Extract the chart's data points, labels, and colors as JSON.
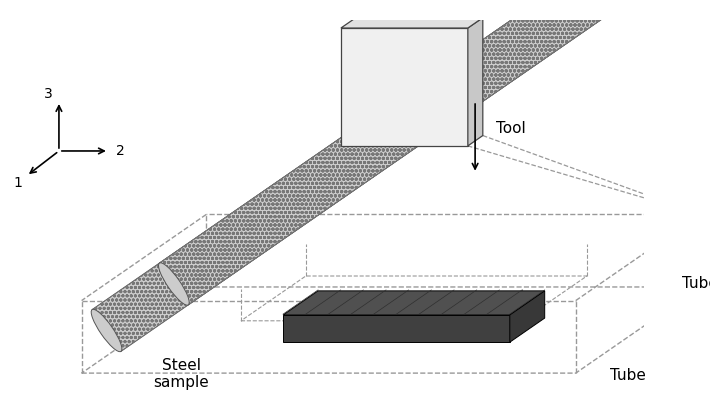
{
  "background_color": "#ffffff",
  "dashed_color": "#999999",
  "tube_body_color": "#cccccc",
  "tube_end_color": "#aaaaaa",
  "tool_front_color": "#f0f0f0",
  "tool_right_color": "#c8c8c8",
  "tool_top_color": "#e0e0e0",
  "sample_top_color": "#505050",
  "sample_front_color": "#404040",
  "sample_right_color": "#383838",
  "label_tool": "Tool",
  "label_tube1": "Tube",
  "label_tube2": "Tube",
  "label_sample_line1": "Steel",
  "label_sample_line2": "sample",
  "axis_label_1": "1",
  "axis_label_2": "2",
  "axis_label_3": "3",
  "figsize": [
    7.1,
    4.18
  ],
  "dpi": 100
}
